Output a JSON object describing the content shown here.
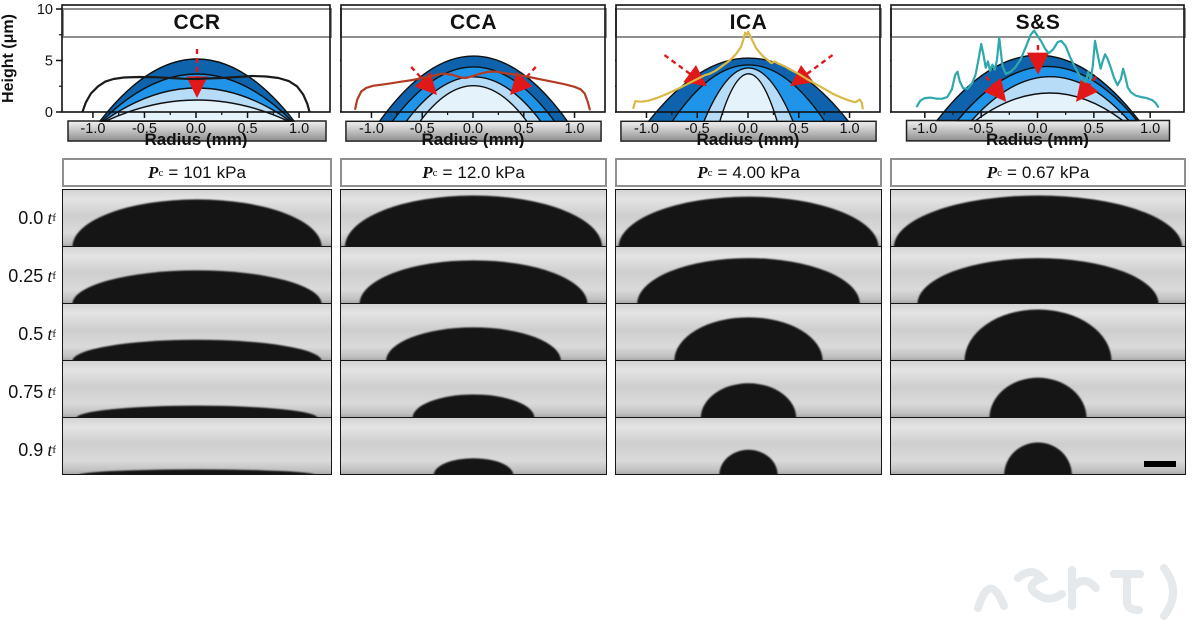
{
  "header": {
    "modes": [
      "CCR",
      "CCA",
      "ICA",
      "S&S"
    ]
  },
  "schematics": {
    "palette": {
      "outer": "#0f63ac",
      "second": "#2094e8",
      "third": "#b7dcf7",
      "inner": "#e4f2fc"
    },
    "arrow_color": "#e01818",
    "substrate_colors": [
      "#f2f2f2",
      "#8f8f8f"
    ],
    "items": [
      {
        "mode": "CCR",
        "arrows": "vertical-down"
      },
      {
        "mode": "CCA",
        "arrows": "inward-diagonal"
      },
      {
        "mode": "ICA",
        "arrows": "inward-diagonal"
      },
      {
        "mode": "S&S",
        "arrows": "vertical-down-and-inward"
      }
    ]
  },
  "pressure_row": {
    "symbol": "P",
    "subscript": "c",
    "equals": "=",
    "unit": "kPa",
    "values": [
      "101",
      "12.0",
      "4.00",
      "0.67"
    ]
  },
  "photo_grid": {
    "time_values": [
      "0.0",
      "0.25",
      "0.5",
      "0.75",
      "0.9"
    ],
    "time_symbol": "t",
    "time_subscript": "f",
    "scale_bar_present": true,
    "cells": [
      [
        [
          0.93,
          0.85
        ],
        [
          0.97,
          0.92
        ],
        [
          0.98,
          0.9
        ],
        [
          0.98,
          0.92
        ]
      ],
      [
        [
          0.93,
          0.6
        ],
        [
          0.86,
          0.78
        ],
        [
          0.84,
          0.82
        ],
        [
          0.82,
          0.82
        ]
      ],
      [
        [
          0.93,
          0.38
        ],
        [
          0.66,
          0.6
        ],
        [
          0.56,
          0.78
        ],
        [
          0.5,
          0.92
        ]
      ],
      [
        [
          0.9,
          0.22
        ],
        [
          0.46,
          0.42
        ],
        [
          0.36,
          0.62
        ],
        [
          0.33,
          0.72
        ]
      ],
      [
        [
          0.88,
          0.1
        ],
        [
          0.3,
          0.3
        ],
        [
          0.22,
          0.45
        ],
        [
          0.23,
          0.58
        ]
      ]
    ]
  },
  "watermark": {
    "visible": true,
    "text": "(illegible stylized watermark)"
  },
  "chart_data": [
    {
      "type": "line",
      "name": "CCR height profile",
      "color": "#1a1a1a",
      "xlabel": "Radius (mm)",
      "ylabel": "Height (μm)",
      "x_range": [
        -1.3,
        1.3
      ],
      "y_range": [
        0,
        10
      ],
      "x_ticks": [
        -1.0,
        -0.5,
        0.0,
        0.5,
        1.0
      ],
      "x_minor_ticks": [
        -0.75,
        -0.25,
        0.25,
        0.75
      ],
      "y_ticks": [
        0,
        5,
        10
      ],
      "y_minor_ticks": [
        2.5,
        7.5
      ],
      "y_axis_labels": true,
      "points": [
        [
          -1.1,
          0.05
        ],
        [
          -1.07,
          0.9
        ],
        [
          -1.02,
          1.8
        ],
        [
          -0.95,
          2.5
        ],
        [
          -0.88,
          2.95
        ],
        [
          -0.8,
          3.2
        ],
        [
          -0.7,
          3.35
        ],
        [
          -0.55,
          3.4
        ],
        [
          -0.4,
          3.38
        ],
        [
          -0.25,
          3.3
        ],
        [
          -0.1,
          3.22
        ],
        [
          0.0,
          3.2
        ],
        [
          0.1,
          3.25
        ],
        [
          0.25,
          3.3
        ],
        [
          0.4,
          3.4
        ],
        [
          0.55,
          3.5
        ],
        [
          0.68,
          3.45
        ],
        [
          0.8,
          3.3
        ],
        [
          0.9,
          3.0
        ],
        [
          0.98,
          2.5
        ],
        [
          1.04,
          1.7
        ],
        [
          1.08,
          0.8
        ],
        [
          1.1,
          0.05
        ]
      ]
    },
    {
      "type": "line",
      "name": "CCA height profile",
      "color": "#b23c24",
      "xlabel": "Radius (mm)",
      "ylabel": "",
      "x_range": [
        -1.3,
        1.3
      ],
      "y_range": [
        0,
        10
      ],
      "x_ticks": [
        -1.0,
        -0.5,
        0.0,
        0.5,
        1.0
      ],
      "x_minor_ticks": [
        -0.75,
        -0.25,
        0.25,
        0.75
      ],
      "y_ticks": [
        0,
        5,
        10
      ],
      "y_minor_ticks": [
        2.5,
        7.5
      ],
      "y_axis_labels": false,
      "points": [
        [
          -1.16,
          0.3
        ],
        [
          -1.14,
          1.2
        ],
        [
          -1.1,
          2.0
        ],
        [
          -1.05,
          2.35
        ],
        [
          -0.98,
          2.55
        ],
        [
          -0.9,
          2.65
        ],
        [
          -0.8,
          2.8
        ],
        [
          -0.7,
          2.95
        ],
        [
          -0.6,
          3.1
        ],
        [
          -0.5,
          3.3
        ],
        [
          -0.4,
          3.5
        ],
        [
          -0.32,
          3.7
        ],
        [
          -0.28,
          3.72
        ],
        [
          -0.2,
          3.6
        ],
        [
          -0.12,
          3.35
        ],
        [
          -0.07,
          3.3
        ],
        [
          0.0,
          3.5
        ],
        [
          0.08,
          3.75
        ],
        [
          0.15,
          3.9
        ],
        [
          0.22,
          3.92
        ],
        [
          0.3,
          3.8
        ],
        [
          0.4,
          3.65
        ],
        [
          0.5,
          3.5
        ],
        [
          0.6,
          3.3
        ],
        [
          0.7,
          3.1
        ],
        [
          0.8,
          2.9
        ],
        [
          0.9,
          2.7
        ],
        [
          1.0,
          2.45
        ],
        [
          1.06,
          2.2
        ],
        [
          1.1,
          1.8
        ],
        [
          1.13,
          1.0
        ],
        [
          1.15,
          0.25
        ]
      ]
    },
    {
      "type": "line",
      "name": "ICA height profile",
      "color": "#d9b945",
      "xlabel": "Radius (mm)",
      "ylabel": "",
      "x_range": [
        -1.3,
        1.3
      ],
      "y_range": [
        0,
        10
      ],
      "x_ticks": [
        -1.0,
        -0.5,
        0.0,
        0.5,
        1.0
      ],
      "x_minor_ticks": [
        -0.75,
        -0.25,
        0.25,
        0.75
      ],
      "y_ticks": [
        0,
        5,
        10
      ],
      "y_minor_ticks": [
        2.5,
        7.5
      ],
      "y_axis_labels": false,
      "points": [
        [
          -1.13,
          0.4
        ],
        [
          -1.11,
          1.05
        ],
        [
          -1.05,
          1.0
        ],
        [
          -0.98,
          1.1
        ],
        [
          -0.9,
          1.35
        ],
        [
          -0.8,
          1.75
        ],
        [
          -0.7,
          2.2
        ],
        [
          -0.6,
          2.7
        ],
        [
          -0.5,
          3.2
        ],
        [
          -0.42,
          3.6
        ],
        [
          -0.38,
          3.7
        ],
        [
          -0.32,
          4.0
        ],
        [
          -0.25,
          4.5
        ],
        [
          -0.18,
          5.0
        ],
        [
          -0.12,
          5.6
        ],
        [
          -0.07,
          6.3
        ],
        [
          -0.04,
          7.2
        ],
        [
          -0.03,
          7.7
        ],
        [
          -0.01,
          7.5
        ],
        [
          0.0,
          7.8
        ],
        [
          0.02,
          7.4
        ],
        [
          0.05,
          6.8
        ],
        [
          0.08,
          6.2
        ],
        [
          0.12,
          5.7
        ],
        [
          0.16,
          5.3
        ],
        [
          0.2,
          5.0
        ],
        [
          0.23,
          4.75
        ],
        [
          0.26,
          4.9
        ],
        [
          0.3,
          4.7
        ],
        [
          0.36,
          4.45
        ],
        [
          0.42,
          4.1
        ],
        [
          0.5,
          3.7
        ],
        [
          0.58,
          3.2
        ],
        [
          0.66,
          2.75
        ],
        [
          0.75,
          2.25
        ],
        [
          0.84,
          1.75
        ],
        [
          0.92,
          1.4
        ],
        [
          1.0,
          1.1
        ],
        [
          1.06,
          0.95
        ],
        [
          1.1,
          1.2
        ],
        [
          1.12,
          0.9
        ],
        [
          1.13,
          0.35
        ]
      ]
    },
    {
      "type": "line",
      "name": "S&S height profile",
      "color": "#2fa8ad",
      "xlabel": "Radius (mm)",
      "ylabel": "",
      "x_range": [
        -1.3,
        1.3
      ],
      "y_range": [
        0,
        10
      ],
      "x_ticks": [
        -1.0,
        -0.5,
        0.0,
        0.5,
        1.0
      ],
      "x_minor_ticks": [
        -0.75,
        -0.25,
        0.25,
        0.75
      ],
      "y_ticks": [
        0,
        5,
        10
      ],
      "y_minor_ticks": [
        2.5,
        7.5
      ],
      "y_axis_labels": false,
      "points": [
        [
          -1.07,
          0.55
        ],
        [
          -1.04,
          1.1
        ],
        [
          -1.0,
          1.35
        ],
        [
          -0.95,
          1.4
        ],
        [
          -0.9,
          1.3
        ],
        [
          -0.85,
          1.28
        ],
        [
          -0.8,
          1.45
        ],
        [
          -0.76,
          2.2
        ],
        [
          -0.73,
          3.6
        ],
        [
          -0.71,
          3.9
        ],
        [
          -0.69,
          3.0
        ],
        [
          -0.66,
          2.3
        ],
        [
          -0.62,
          2.25
        ],
        [
          -0.58,
          2.8
        ],
        [
          -0.55,
          3.6
        ],
        [
          -0.52,
          5.3
        ],
        [
          -0.5,
          6.6
        ],
        [
          -0.48,
          5.6
        ],
        [
          -0.46,
          4.3
        ],
        [
          -0.44,
          4.9
        ],
        [
          -0.42,
          4.0
        ],
        [
          -0.4,
          4.6
        ],
        [
          -0.38,
          4.1
        ],
        [
          -0.36,
          5.0
        ],
        [
          -0.34,
          7.2
        ],
        [
          -0.33,
          6.3
        ],
        [
          -0.31,
          4.4
        ],
        [
          -0.28,
          3.7
        ],
        [
          -0.24,
          3.9
        ],
        [
          -0.2,
          4.3
        ],
        [
          -0.15,
          5.1
        ],
        [
          -0.1,
          6.4
        ],
        [
          -0.06,
          7.5
        ],
        [
          -0.03,
          7.9
        ],
        [
          0.0,
          7.4
        ],
        [
          0.03,
          6.9
        ],
        [
          0.07,
          6.1
        ],
        [
          0.1,
          5.7
        ],
        [
          0.14,
          6.1
        ],
        [
          0.18,
          6.8
        ],
        [
          0.21,
          6.9
        ],
        [
          0.25,
          6.4
        ],
        [
          0.29,
          5.3
        ],
        [
          0.33,
          4.4
        ],
        [
          0.37,
          3.6
        ],
        [
          0.4,
          3.1
        ],
        [
          0.43,
          2.9
        ],
        [
          0.45,
          3.9
        ],
        [
          0.47,
          3.1
        ],
        [
          0.49,
          4.4
        ],
        [
          0.51,
          6.9
        ],
        [
          0.53,
          5.8
        ],
        [
          0.56,
          4.2
        ],
        [
          0.58,
          5.0
        ],
        [
          0.6,
          5.6
        ],
        [
          0.62,
          5.2
        ],
        [
          0.65,
          4.3
        ],
        [
          0.68,
          3.3
        ],
        [
          0.71,
          2.6
        ],
        [
          0.74,
          3.2
        ],
        [
          0.76,
          4.2
        ],
        [
          0.78,
          3.4
        ],
        [
          0.8,
          2.4
        ],
        [
          0.83,
          1.9
        ],
        [
          0.87,
          1.6
        ],
        [
          0.92,
          1.45
        ],
        [
          0.97,
          1.35
        ],
        [
          1.02,
          1.15
        ],
        [
          1.05,
          0.85
        ],
        [
          1.07,
          0.5
        ]
      ]
    }
  ]
}
